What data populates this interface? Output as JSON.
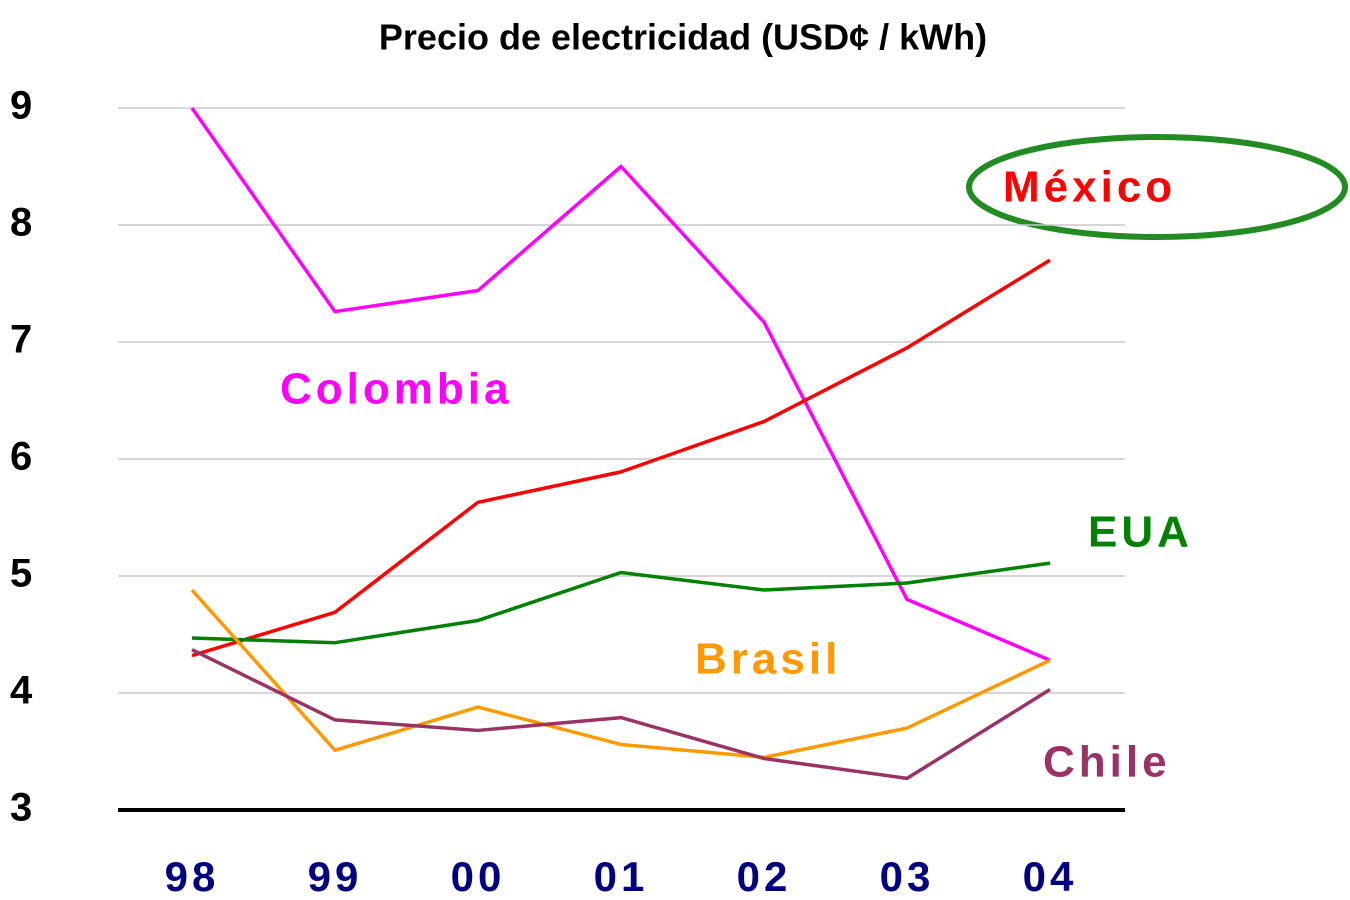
{
  "chart_data": {
    "type": "line",
    "title": "Precio de electricidad (USD¢ / kWh)",
    "categories": [
      "98",
      "99",
      "00",
      "01",
      "02",
      "03",
      "04"
    ],
    "series": [
      {
        "name": "Colombia",
        "color": "#ff00ff",
        "values": [
          9.0,
          7.26,
          7.44,
          8.5,
          7.17,
          4.8,
          4.28
        ]
      },
      {
        "name": "México",
        "color": "#ff0000",
        "values": [
          4.32,
          4.69,
          5.63,
          5.89,
          6.32,
          6.95,
          7.7
        ]
      },
      {
        "name": "EUA",
        "color": "#008000",
        "values": [
          4.47,
          4.43,
          4.62,
          5.03,
          4.88,
          4.94,
          5.11
        ]
      },
      {
        "name": "Brasil",
        "color": "#ff9900",
        "values": [
          4.88,
          3.51,
          3.88,
          3.56,
          3.45,
          3.7,
          4.28
        ]
      },
      {
        "name": "Chile",
        "color": "#993366",
        "values": [
          4.37,
          3.77,
          3.68,
          3.79,
          3.44,
          3.27,
          4.03
        ]
      }
    ],
    "ylim": [
      3,
      9
    ],
    "yticks": [
      3,
      4,
      5,
      6,
      7,
      8,
      9
    ],
    "grid": true
  }
}
